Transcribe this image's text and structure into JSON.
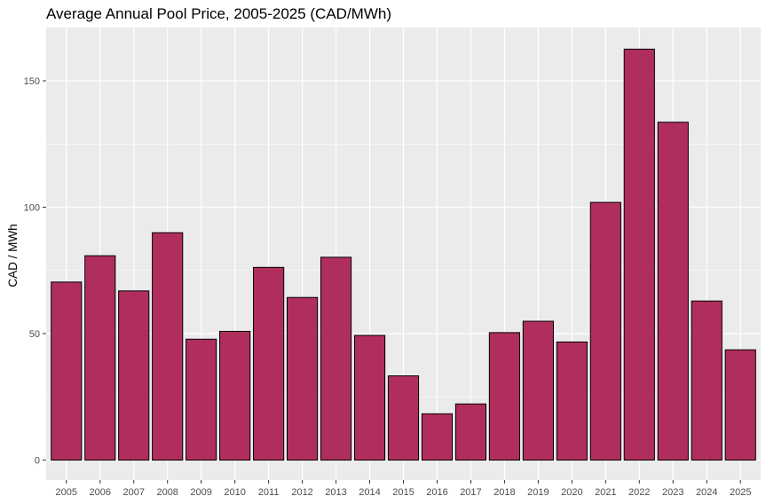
{
  "chart_data": {
    "type": "bar",
    "title": "Average Annual Pool Price, 2005-2025 (CAD/MWh)",
    "xlabel": "",
    "ylabel": "CAD / MWh",
    "categories": [
      "2005",
      "2006",
      "2007",
      "2008",
      "2009",
      "2010",
      "2011",
      "2012",
      "2013",
      "2014",
      "2015",
      "2016",
      "2017",
      "2018",
      "2019",
      "2020",
      "2021",
      "2022",
      "2023",
      "2024",
      "2025"
    ],
    "values": [
      70.4,
      80.8,
      66.9,
      89.9,
      47.8,
      50.9,
      76.2,
      64.3,
      80.2,
      49.3,
      33.3,
      18.3,
      22.2,
      50.4,
      54.9,
      46.7,
      101.9,
      162.5,
      133.6,
      62.9,
      43.6
    ],
    "ylim": [
      0,
      170
    ],
    "yticks": [
      0,
      50,
      100,
      150
    ],
    "grid": true,
    "legend": "none",
    "colors": {
      "bar_fill": "#b02e5e",
      "bar_stroke": "#000000",
      "panel_bg": "#ebebeb",
      "grid_major": "#ffffff"
    }
  }
}
